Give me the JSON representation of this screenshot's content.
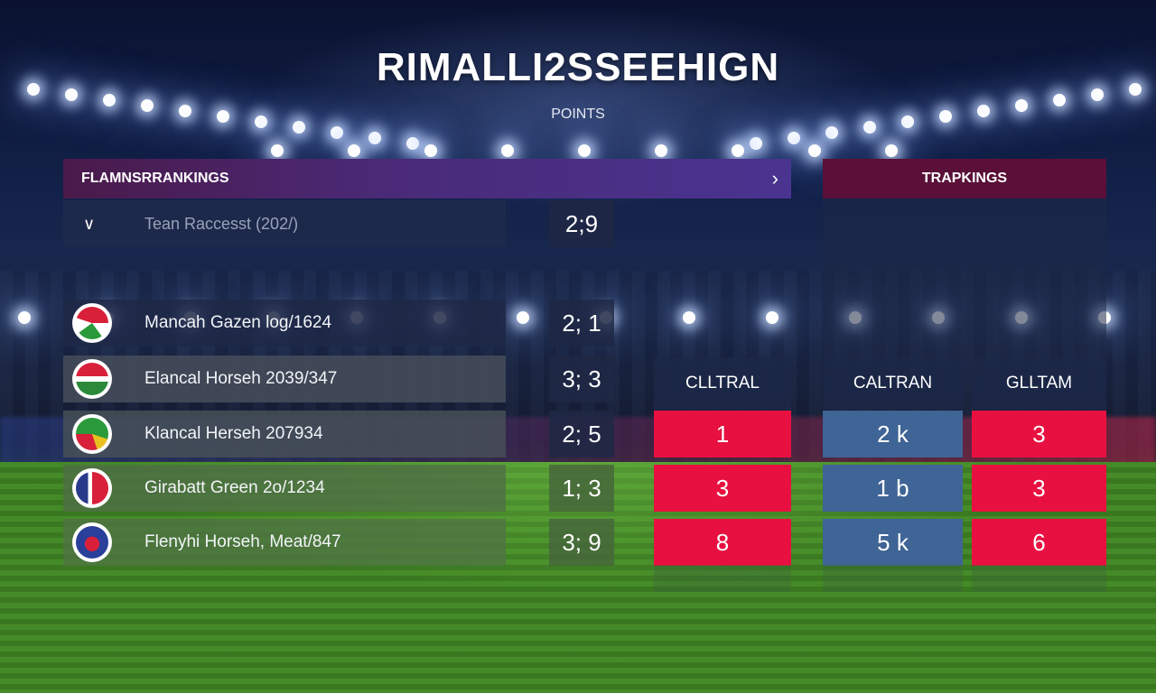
{
  "title": "RIMALLI2SSEEHIGN",
  "subtitle": "POINTS",
  "left_header": {
    "label": "FLAMNSRRANKINGS",
    "icon": "chevron-right-icon"
  },
  "right_header": {
    "label": "TRAPKINGS"
  },
  "dropdown": {
    "label": "Tean Raccesst (202/)",
    "score": "2;9",
    "icon": "chevron-down-icon"
  },
  "teams": [
    {
      "name": "Mancah Gazen log/1624",
      "score": "2; 1",
      "badge": "crest-red-green-icon"
    },
    {
      "name": "Elancal Horseh 2039/347",
      "score": "3; 3",
      "badge": "flag-red-white-green-icon"
    },
    {
      "name": "Klancal Herseh 207934",
      "score": "2; 5",
      "badge": "flag-green-red-yellow-icon"
    },
    {
      "name": "Girabatt Green 2o/1234",
      "score": "1; 3",
      "badge": "flag-blue-white-red-icon"
    },
    {
      "name": "Flenyhi Horseh, Meat/847",
      "score": "3; 9",
      "badge": "crest-blue-red-icon"
    }
  ],
  "columns": [
    {
      "header": "CLLTRAL",
      "values": [
        "1",
        "3",
        "8"
      ],
      "color": "#e81040"
    },
    {
      "header": "CALTRAN",
      "values": [
        "2 k",
        "1 b",
        "5 k"
      ],
      "color": "#3f6496"
    },
    {
      "header": "GLLTAM",
      "values": [
        "3",
        "3",
        "6"
      ],
      "color": "#e81040"
    }
  ]
}
